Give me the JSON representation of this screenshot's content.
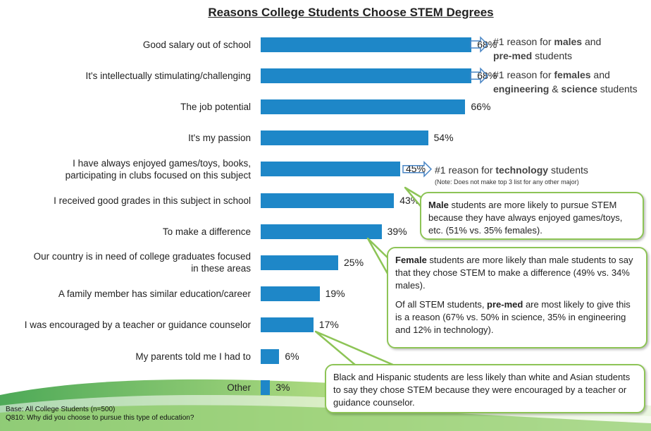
{
  "chart_data": {
    "type": "bar",
    "orientation": "horizontal",
    "title": "Reasons College Students Choose STEM Degrees",
    "categories": [
      "Good salary out of school",
      "It's intellectually stimulating/challenging",
      "The job potential",
      "It's my passion",
      "I have always enjoyed games/toys, books, participating in clubs focused on this subject",
      "I received good grades in this subject in school",
      "To make a difference",
      "Our country is in need of college graduates focused in these areas",
      "A family member has similar education/career",
      "I was encouraged by a teacher or guidance counselor",
      "My parents told me I had to",
      "Other"
    ],
    "category_lines": [
      [
        "Good salary out of school"
      ],
      [
        "It's intellectually stimulating/challenging"
      ],
      [
        "The job potential"
      ],
      [
        "It's my passion"
      ],
      [
        "I have always enjoyed games/toys, books,",
        "participating in clubs focused on this subject"
      ],
      [
        "I received good grades in this subject in school"
      ],
      [
        "To make a difference"
      ],
      [
        "Our country is in need of college graduates focused",
        "in these areas"
      ],
      [
        "A family member has similar education/career"
      ],
      [
        "I was encouraged by a teacher or guidance counselor"
      ],
      [
        "My parents told me I had to"
      ],
      [
        "Other"
      ]
    ],
    "values": [
      68,
      68,
      66,
      54,
      45,
      43,
      39,
      25,
      19,
      17,
      6,
      3
    ],
    "value_labels": [
      "68%",
      "68%",
      "66%",
      "54%",
      "45%",
      "43%",
      "39%",
      "25%",
      "19%",
      "17%",
      "6%",
      "3%"
    ],
    "xlim": [
      0,
      100
    ],
    "bar_color": "#1e87c8",
    "grid": false
  },
  "annotations": {
    "salary_note": {
      "pre": "#1 reason for ",
      "bold1": "males",
      "mid": " and",
      "bold2": "pre-med",
      "post": " students"
    },
    "stimulating_note": {
      "pre": "#1 reason for ",
      "bold1": "females",
      "mid": " and",
      "bold2": "engineering",
      "amp": " & ",
      "bold3": "science",
      "post": " students"
    },
    "tech_note": {
      "pre": "#1 reason for ",
      "bold1": "technology",
      "post": " students"
    },
    "tech_small": "(Note: Does not make top 3 list for any other major)"
  },
  "callouts": {
    "male": {
      "bold": "Male",
      "text": " students are more likely to pursue STEM because they have always enjoyed games/toys, etc. (51% vs. 35% females)."
    },
    "female": {
      "bold": "Female",
      "text": " students are more likely than male students to say that they chose STEM to make a difference (49% vs. 34% males).",
      "p2_pre": "Of all STEM students, ",
      "p2_bold": "pre-med",
      "p2_text": " are most likely to give this is a reason (67% vs. 50% in science, 35% in engineering and 12% in technology)."
    },
    "teacher": {
      "text": "Black and Hispanic students are less likely than white and Asian students to say they chose STEM because they were encouraged by a teacher or guidance counselor."
    }
  },
  "footer": {
    "base": "Base: All College Students (n=500)",
    "question": "Q810: Why did you choose to pursue this type of education?"
  },
  "colors": {
    "accent_green": "#8dc456",
    "arrow_blue": "#4a86c5"
  }
}
